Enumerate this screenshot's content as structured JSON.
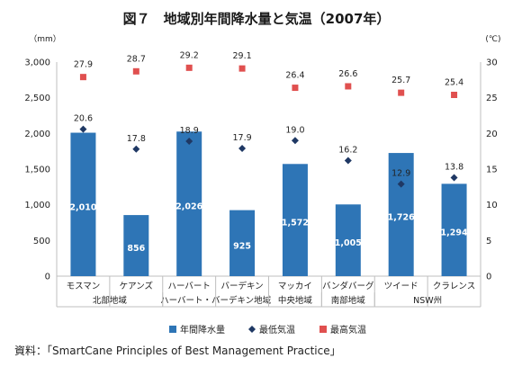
{
  "title": "図７　地域別年間降水量と気温（2007年）",
  "source": "資料：「SmartCane Principles of Best Management Practice」",
  "chart_data": {
    "type": "bar",
    "categories": [
      "モスマン",
      "ケアンズ",
      "ハーバート",
      "バーデキン",
      "マッカイ",
      "バンダバーグ",
      "ツイード",
      "クラレンス"
    ],
    "groups": [
      {
        "label": "北部地域",
        "span": [
          0,
          1
        ]
      },
      {
        "label": "ハーバート・バーデキン地域",
        "span": [
          2,
          3
        ]
      },
      {
        "label": "中央地域",
        "span": [
          4,
          4
        ]
      },
      {
        "label": "南部地域",
        "span": [
          5,
          5
        ]
      },
      {
        "label": "NSW州",
        "span": [
          6,
          7
        ]
      }
    ],
    "left_axis": {
      "unit": "（mm）",
      "ylim": [
        0,
        3000
      ],
      "ticks": [
        "0",
        "500",
        "1,000",
        "1,500",
        "2,000",
        "2,500",
        "3,000"
      ]
    },
    "right_axis": {
      "unit": "(℃)",
      "ylim": [
        0,
        30
      ],
      "ticks": [
        "0",
        "5",
        "10",
        "15",
        "20",
        "25",
        "30"
      ]
    },
    "series": [
      {
        "name": "年間降水量",
        "kind": "bar",
        "axis": "left",
        "color": "#2e75b6",
        "values": [
          2010,
          856,
          2026,
          925,
          1572,
          1005,
          1726,
          1294
        ],
        "labels": [
          "2,010",
          "856",
          "2,026",
          "925",
          "1,572",
          "1,005",
          "1,726",
          "1,294"
        ]
      },
      {
        "name": "最低気温",
        "kind": "diamond",
        "axis": "right",
        "color": "#1f3864",
        "values": [
          20.6,
          17.8,
          18.9,
          17.9,
          19.0,
          16.2,
          12.9,
          13.8
        ],
        "labels": [
          "20.6",
          "17.8",
          "18.9",
          "17.9",
          "19.0",
          "16.2",
          "12.9",
          "13.8"
        ]
      },
      {
        "name": "最高気温",
        "kind": "square",
        "axis": "right",
        "color": "#e0504f",
        "values": [
          27.9,
          28.7,
          29.2,
          29.1,
          26.4,
          26.6,
          25.7,
          25.4
        ],
        "labels": [
          "27.9",
          "28.7",
          "29.2",
          "29.1",
          "26.4",
          "26.6",
          "25.7",
          "25.4"
        ]
      }
    ],
    "grid": false,
    "legend_position": "bottom"
  }
}
